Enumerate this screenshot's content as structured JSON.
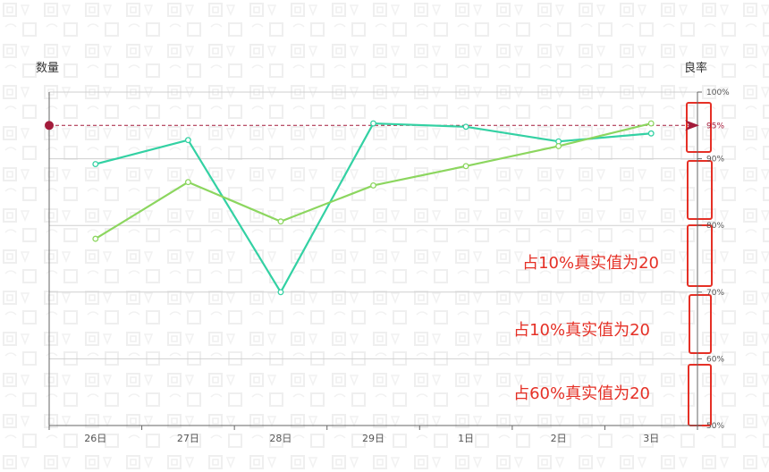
{
  "chart_data": {
    "type": "line",
    "categories": [
      "26日",
      "27日",
      "28日",
      "29日",
      "1日",
      "2日",
      "3日"
    ],
    "yaxis_left": {
      "label": "数量",
      "ticks_visible": false
    },
    "yaxis_right": {
      "label": "良率",
      "ticks": [
        "50%",
        "60%",
        "70%",
        "80%",
        "90%",
        "100%"
      ],
      "ylim": [
        50,
        100
      ]
    },
    "series": [
      {
        "color": "#33d1a3",
        "values": [
          89.2,
          92.8,
          70.0,
          95.3,
          94.8,
          92.6,
          93.8
        ]
      },
      {
        "color": "#8cd65f",
        "values": [
          78.0,
          86.5,
          80.6,
          86.0,
          88.9,
          91.9,
          95.3
        ]
      }
    ],
    "reference_line": {
      "value": 95,
      "label": "95%",
      "color": "#a31b3a"
    },
    "annotations": [
      {
        "text": "占10%真实值为20"
      },
      {
        "text": "占10%真实值为20"
      },
      {
        "text": "占60%真实值为20"
      }
    ],
    "highlight_color": "#e53026",
    "grid": true
  }
}
